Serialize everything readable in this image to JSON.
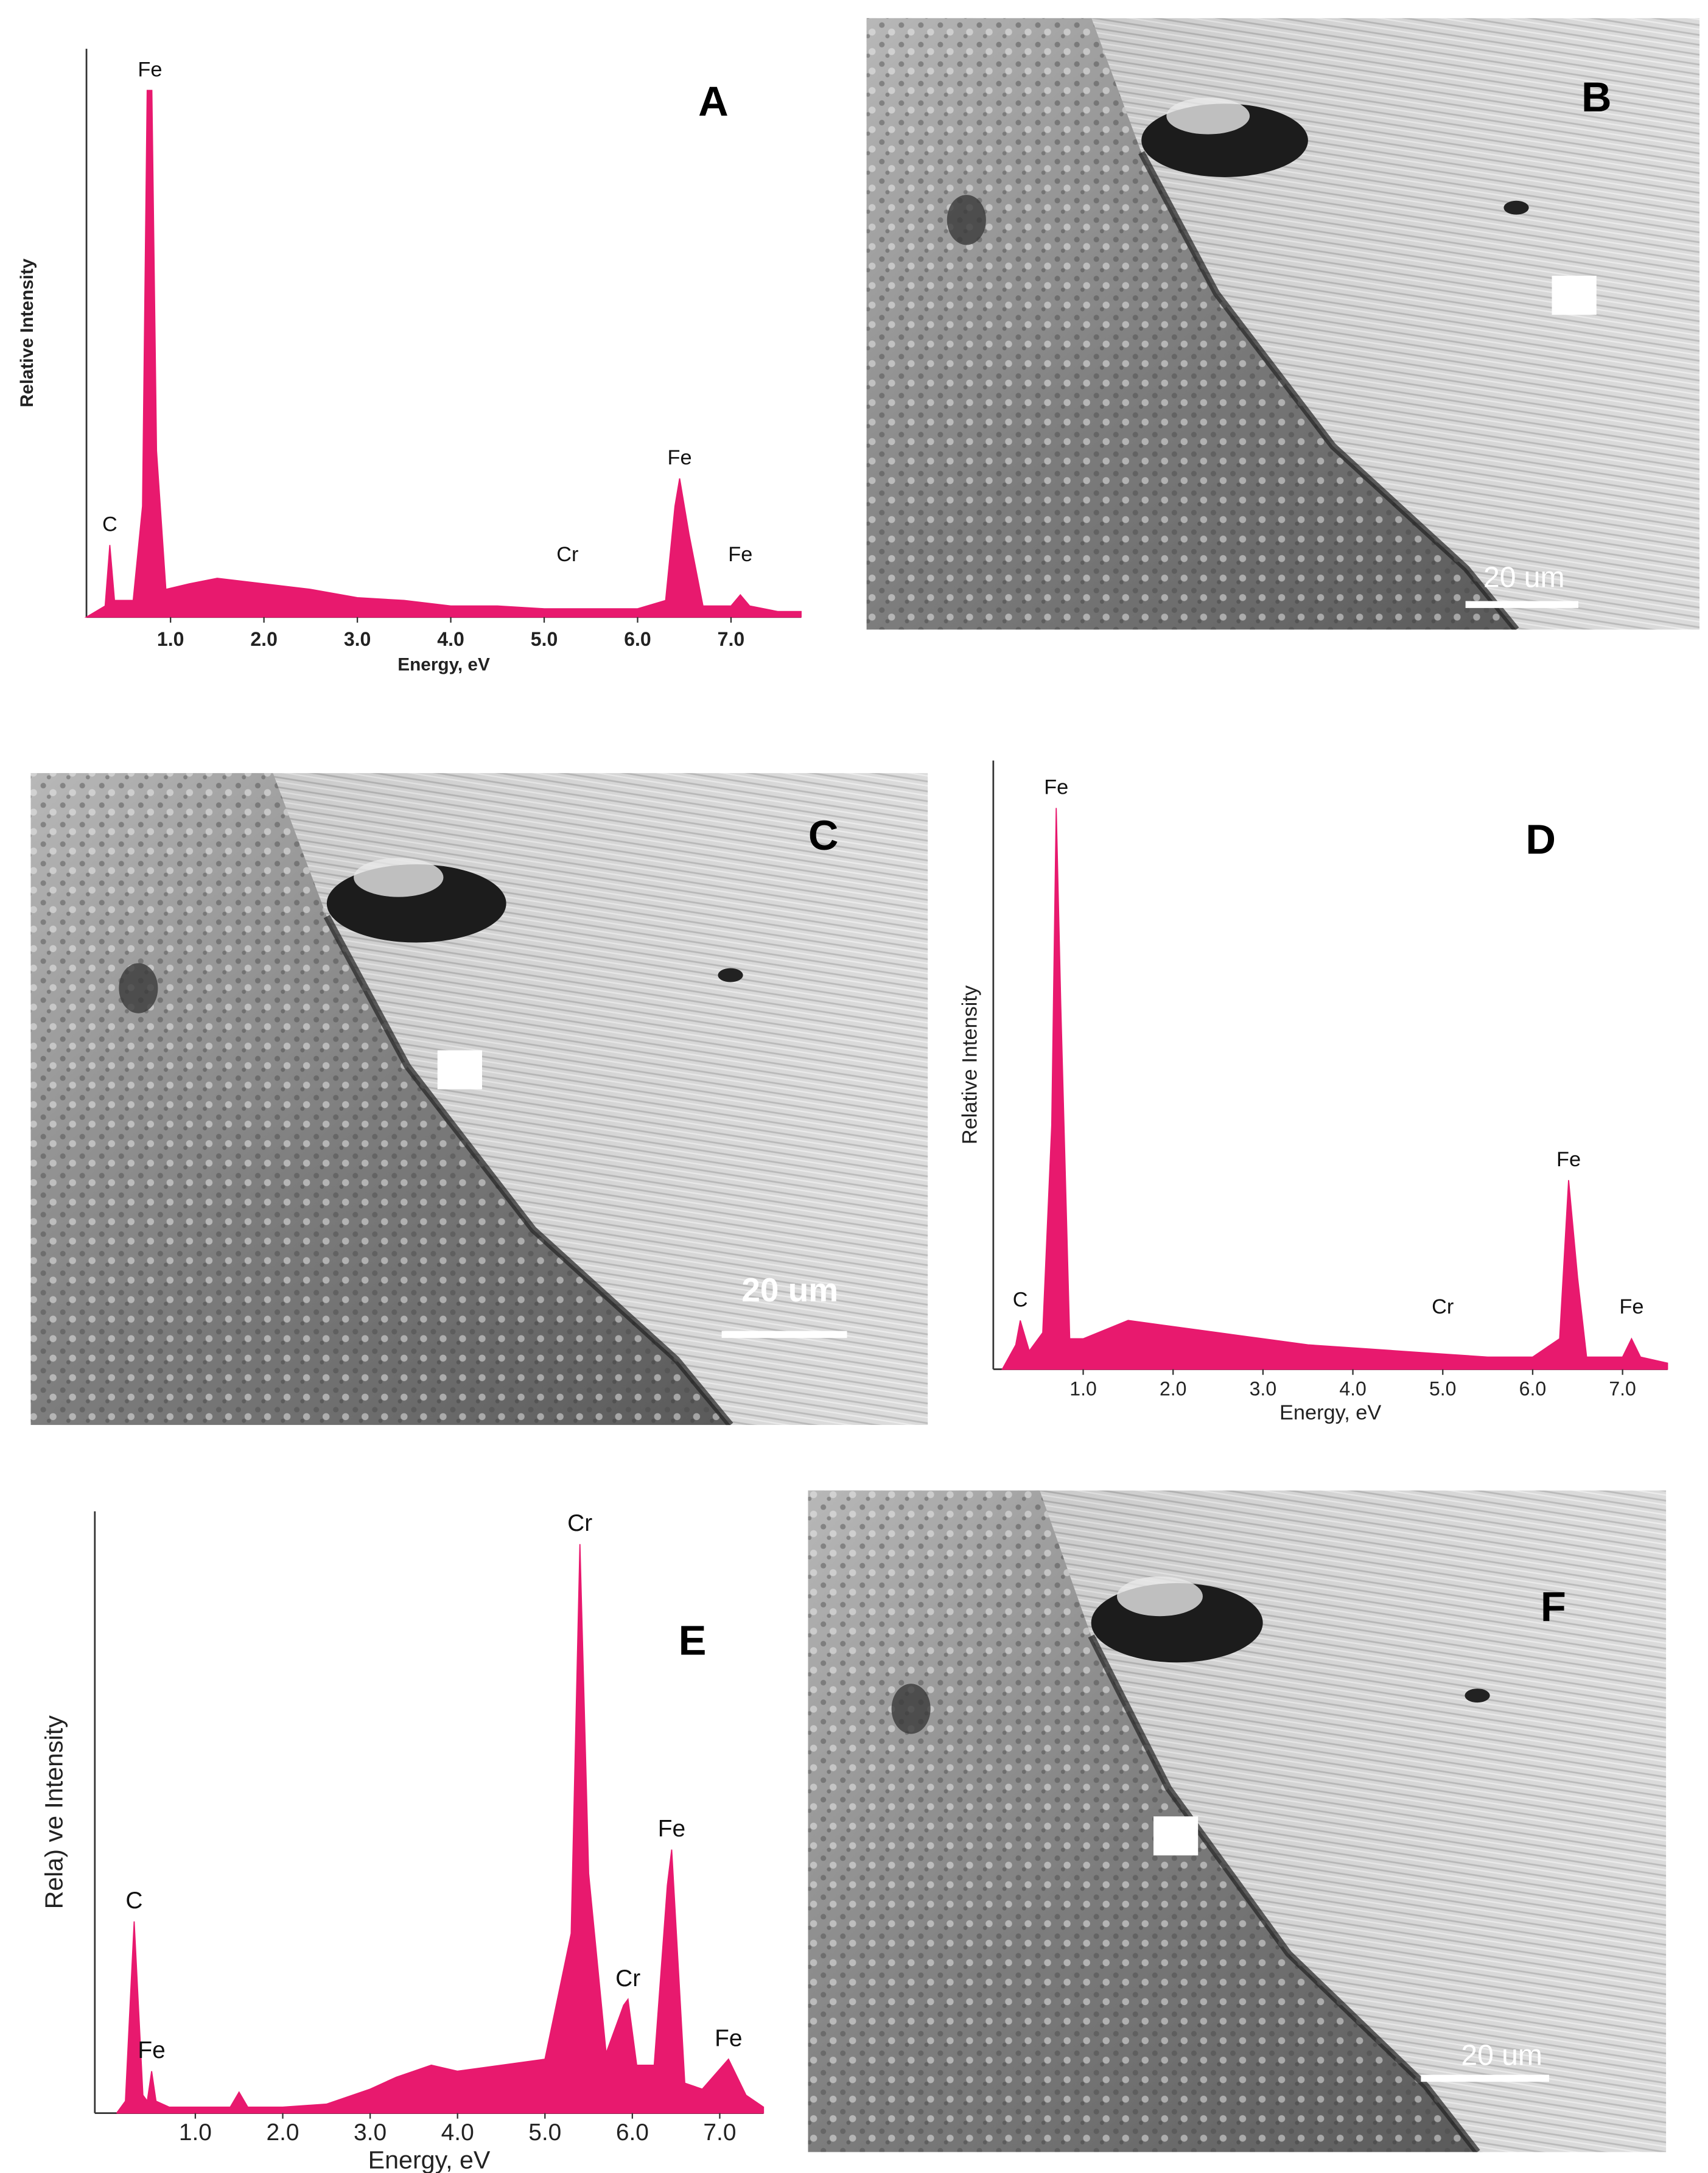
{
  "chart_data": [
    {
      "type": "area",
      "label": "A",
      "color": "#e8196e",
      "x_label": "Energy, eV",
      "y_label": "Relative Intensity",
      "xlim": [
        0.1,
        7.75
      ],
      "ylim": [
        0,
        100
      ],
      "xticks": [
        {
          "value": 1,
          "label": "1.0"
        },
        {
          "value": 2,
          "label": "2.0"
        },
        {
          "value": 3,
          "label": "3.0"
        },
        {
          "value": 4,
          "label": "4.0"
        },
        {
          "value": 5,
          "label": "5.0"
        },
        {
          "value": 6,
          "label": "6.0"
        },
        {
          "value": 7,
          "label": "7.0"
        }
      ],
      "x": [
        0.1,
        0.3,
        0.35,
        0.4,
        0.6,
        0.7,
        0.75,
        0.8,
        0.85,
        0.95,
        1.2,
        1.5,
        2.0,
        2.5,
        3.0,
        3.5,
        4.0,
        4.5,
        5.0,
        5.5,
        6.0,
        6.3,
        6.4,
        6.45,
        6.55,
        6.7,
        7.0,
        7.1,
        7.2,
        7.5,
        7.75
      ],
      "values": [
        0,
        2,
        13,
        3,
        3,
        20,
        95,
        95,
        30,
        5,
        6,
        7,
        6,
        5,
        3.5,
        3,
        2,
        2,
        1.5,
        1.5,
        1.5,
        3,
        20,
        25,
        15,
        2,
        2,
        4,
        2,
        1,
        1
      ],
      "annotations": [
        {
          "text": "Fe",
          "x": 0.78
        },
        {
          "text": "C",
          "x": 0.35
        },
        {
          "text": "Cr",
          "x": 5.25
        },
        {
          "text": "Fe",
          "x": 6.45
        },
        {
          "text": "Fe",
          "x": 7.1
        }
      ]
    },
    {
      "type": "area",
      "label": "D",
      "color": "#e8196e",
      "x_label": "Energy, eV",
      "y_label": "Relative Intensity",
      "xlim": [
        0,
        7.5
      ],
      "ylim": [
        0,
        100
      ],
      "xticks": [
        {
          "value": 1,
          "label": "1.0"
        },
        {
          "value": 2,
          "label": "2.0"
        },
        {
          "value": 3,
          "label": "3.0"
        },
        {
          "value": 4,
          "label": "4.0"
        },
        {
          "value": 5,
          "label": "5.0"
        },
        {
          "value": 6,
          "label": "6.0"
        },
        {
          "value": 7,
          "label": "7.0"
        }
      ],
      "x": [
        0.1,
        0.25,
        0.3,
        0.4,
        0.55,
        0.65,
        0.7,
        0.75,
        0.85,
        1.0,
        1.5,
        2.0,
        2.5,
        3.0,
        3.5,
        4.0,
        4.5,
        5.0,
        5.5,
        6.0,
        6.3,
        6.4,
        6.5,
        6.6,
        7.0,
        7.1,
        7.2,
        7.5
      ],
      "values": [
        0,
        4,
        8,
        3,
        6,
        40,
        92,
        60,
        5,
        5,
        8,
        7,
        6,
        5,
        4,
        3.5,
        3,
        2.5,
        2,
        2,
        5,
        31,
        15,
        2,
        2,
        5,
        2,
        1
      ],
      "annotations": [
        {
          "text": "Fe",
          "x": 0.7
        },
        {
          "text": "C",
          "x": 0.3
        },
        {
          "text": "Cr",
          "x": 5.0
        },
        {
          "text": "Fe",
          "x": 6.4
        },
        {
          "text": "Fe",
          "x": 7.1
        }
      ]
    },
    {
      "type": "area",
      "label": "E",
      "color": "#e8196e",
      "x_label": "Energy, eV",
      "y_label": "Rela) ve Intensity",
      "xlim": [
        -0.15,
        7.5
      ],
      "ylim": [
        0,
        100
      ],
      "xticks": [
        {
          "value": 1,
          "label": "1.0"
        },
        {
          "value": 2,
          "label": "2.0"
        },
        {
          "value": 3,
          "label": "3.0"
        },
        {
          "value": 4,
          "label": "4.0"
        },
        {
          "value": 5,
          "label": "5.0"
        },
        {
          "value": 6,
          "label": "6.0"
        },
        {
          "value": 7,
          "label": "7.0"
        }
      ],
      "x": [
        0.1,
        0.2,
        0.3,
        0.4,
        0.45,
        0.5,
        0.55,
        0.7,
        1.4,
        1.5,
        1.6,
        2.0,
        2.5,
        3.0,
        3.3,
        3.5,
        3.7,
        4.0,
        4.5,
        5.0,
        5.3,
        5.4,
        5.5,
        5.7,
        5.9,
        5.95,
        6.05,
        6.25,
        6.4,
        6.45,
        6.6,
        6.8,
        7.1,
        7.3,
        7.5
      ],
      "values": [
        0,
        2,
        32,
        3,
        2,
        7,
        2,
        1,
        1,
        3.5,
        1,
        1,
        1.5,
        4,
        6,
        7,
        8,
        7,
        8,
        9,
        30,
        95,
        40,
        10,
        18,
        19,
        8,
        8,
        38,
        44,
        5,
        4,
        9,
        3,
        1
      ],
      "annotations": [
        {
          "text": "Cr",
          "x": 5.4
        },
        {
          "text": "C",
          "x": 0.3
        },
        {
          "text": "Fe",
          "x": 0.5
        },
        {
          "text": "Cr",
          "x": 5.95
        },
        {
          "text": "Fe",
          "x": 6.45
        },
        {
          "text": "Fe",
          "x": 7.1
        }
      ]
    }
  ],
  "images": [
    {
      "label": "B",
      "scale_bar": "20 um"
    },
    {
      "label": "C",
      "scale_bar": "20 um"
    },
    {
      "label": "F",
      "scale_bar": "20 um"
    }
  ]
}
